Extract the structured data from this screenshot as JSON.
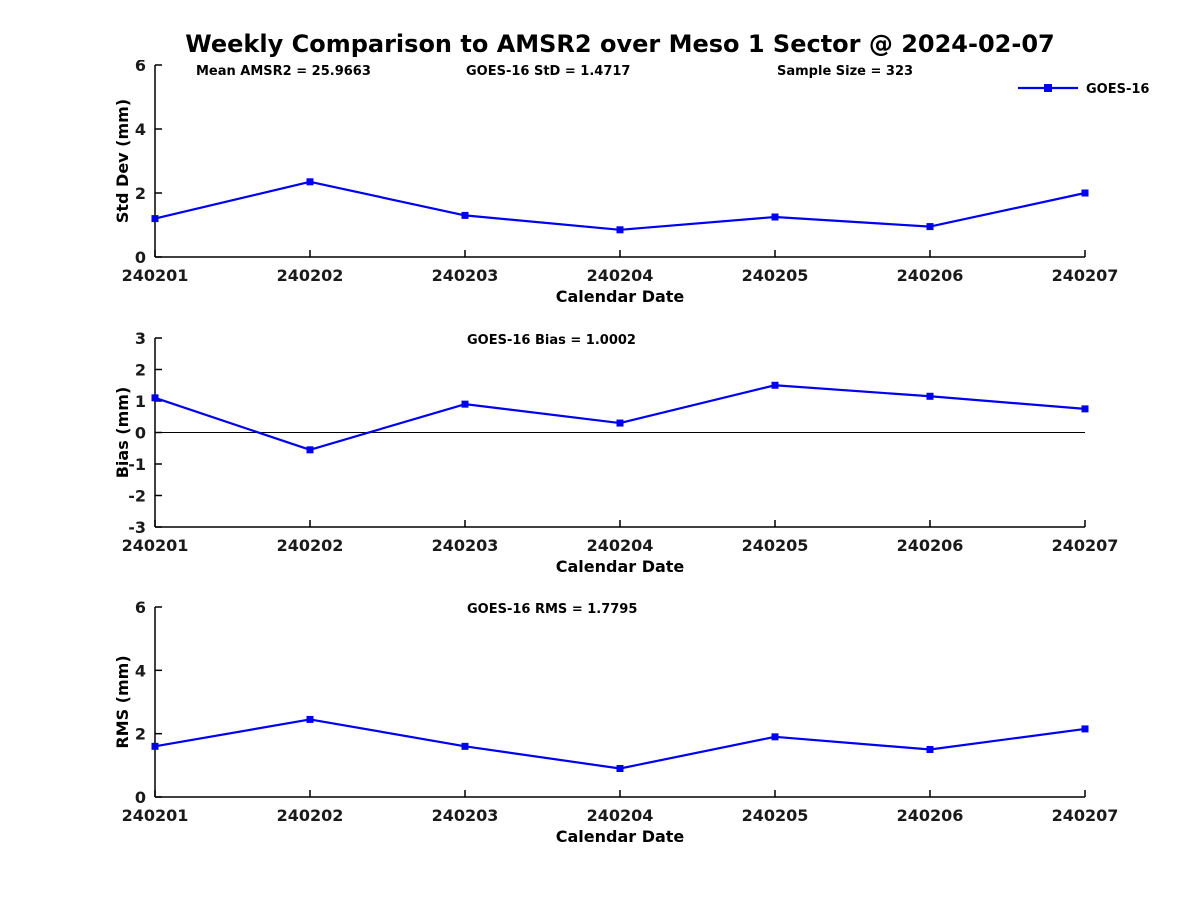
{
  "page": {
    "title": "Weekly Comparison to AMSR2 over Meso 1 Sector @ 2024-02-07"
  },
  "colors": {
    "line": "#0000ee",
    "axis": "#000000",
    "tick_text": "#1a1a1a",
    "background": "#ffffff"
  },
  "legend": {
    "label": "GOES-16",
    "position": "top-right"
  },
  "chart_data": [
    {
      "type": "line",
      "panel": "std-dev",
      "annotations": [
        "Mean AMSR2 = 25.9663",
        "GOES-16 StD = 1.4717",
        "Sample Size = 323"
      ],
      "categories": [
        "240201",
        "240202",
        "240203",
        "240204",
        "240205",
        "240206",
        "240207"
      ],
      "series": [
        {
          "name": "GOES-16",
          "values": [
            1.2,
            2.35,
            1.3,
            0.85,
            1.25,
            0.95,
            2.0
          ]
        }
      ],
      "xlabel": "Calendar Date",
      "ylabel": "Std Dev (mm)",
      "ylim": [
        0,
        6
      ],
      "yticks": [
        0,
        2,
        4,
        6
      ],
      "grid": false,
      "zero_line": false,
      "legend_visible": true,
      "marker": "square"
    },
    {
      "type": "line",
      "panel": "bias",
      "annotations": [
        "GOES-16 Bias  = 1.0002"
      ],
      "categories": [
        "240201",
        "240202",
        "240203",
        "240204",
        "240205",
        "240206",
        "240207"
      ],
      "series": [
        {
          "name": "GOES-16",
          "values": [
            1.1,
            -0.55,
            0.9,
            0.3,
            1.5,
            1.15,
            0.75
          ]
        }
      ],
      "xlabel": "Calendar Date",
      "ylabel": "Bias (mm)",
      "ylim": [
        -3,
        3
      ],
      "yticks": [
        -3,
        -2,
        -1,
        0,
        1,
        2,
        3
      ],
      "grid": false,
      "zero_line": true,
      "legend_visible": false,
      "marker": "square"
    },
    {
      "type": "line",
      "panel": "rms",
      "annotations": [
        "GOES-16 RMS = 1.7795"
      ],
      "categories": [
        "240201",
        "240202",
        "240203",
        "240204",
        "240205",
        "240206",
        "240207"
      ],
      "series": [
        {
          "name": "GOES-16",
          "values": [
            1.6,
            2.45,
            1.6,
            0.9,
            1.9,
            1.5,
            2.15
          ]
        }
      ],
      "xlabel": "Calendar Date",
      "ylabel": "RMS (mm)",
      "ylim": [
        0,
        6
      ],
      "yticks": [
        0,
        2,
        4,
        6
      ],
      "grid": false,
      "zero_line": false,
      "legend_visible": false,
      "marker": "square"
    }
  ]
}
